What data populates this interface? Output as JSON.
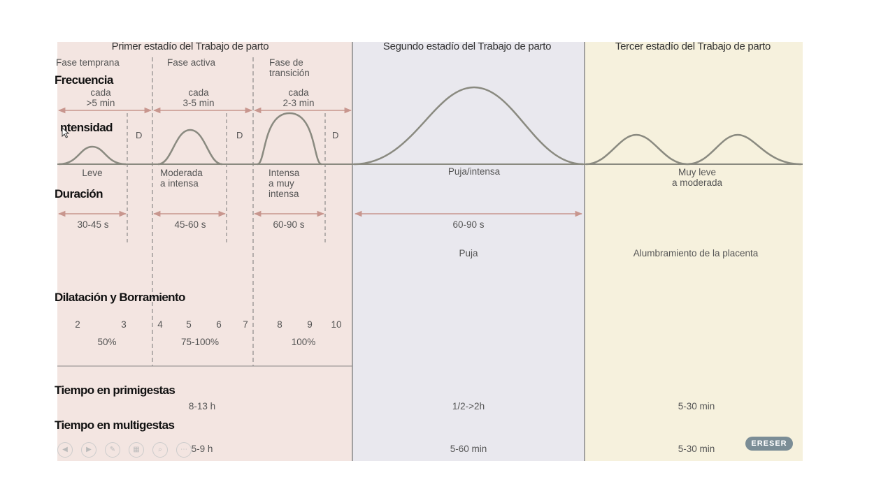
{
  "stages": {
    "first": "Primer estadío del Trabajo de parto",
    "second": "Segundo estadío del Trabajo de parto",
    "third": "Tercer estadío del Trabajo de parto"
  },
  "phases": {
    "early": "Fase temprana",
    "active": "Fase activa",
    "transition": "Fase de\ntransición"
  },
  "rows": {
    "frequency": "Frecuencia",
    "intensity": "ntensidad",
    "duration": "Duración",
    "dilation": "Dilatación  y Borramiento",
    "primi": "Tiempo en primigestas",
    "multi": "Tiempo en multigestas"
  },
  "frequency": {
    "early": "cada\n>5 min",
    "active": "cada\n3-5 min",
    "transition": "cada\n2-3 min"
  },
  "rest_marker": "D",
  "intensity": {
    "early": "Leve",
    "active": "Moderada\na intensa",
    "transition": "Intensa\na muy\nintensa",
    "second": "Puja/intensa",
    "third": "Muy leve\na moderada"
  },
  "duration": {
    "early": "30-45 s",
    "active": "45-60 s",
    "transition": "60-90 s",
    "second": "60-90 s"
  },
  "activity": {
    "second": "Puja",
    "third": "Alumbramiento de la placenta"
  },
  "dilation": {
    "numbers": [
      "2",
      "3",
      "4",
      "5",
      "6",
      "7",
      "8",
      "9",
      "10"
    ],
    "effacement_early": "50%",
    "effacement_active": "75-100%",
    "effacement_transition": "100%"
  },
  "times": {
    "primi_first": "8-13 h",
    "primi_second": "1/2->2h",
    "primi_third": "5-30 min",
    "multi_first": "5-9 h",
    "multi_second": "5-60 min",
    "multi_third": "5-30 min"
  },
  "badge": "ERESER",
  "colors": {
    "stage1_bg": "#f3e5e1",
    "stage2_bg": "#e9e8ee",
    "stage3_bg": "#f6f1dd",
    "arrow": "#c8968e",
    "curve": "#8a8a80",
    "divider": "#777777"
  }
}
